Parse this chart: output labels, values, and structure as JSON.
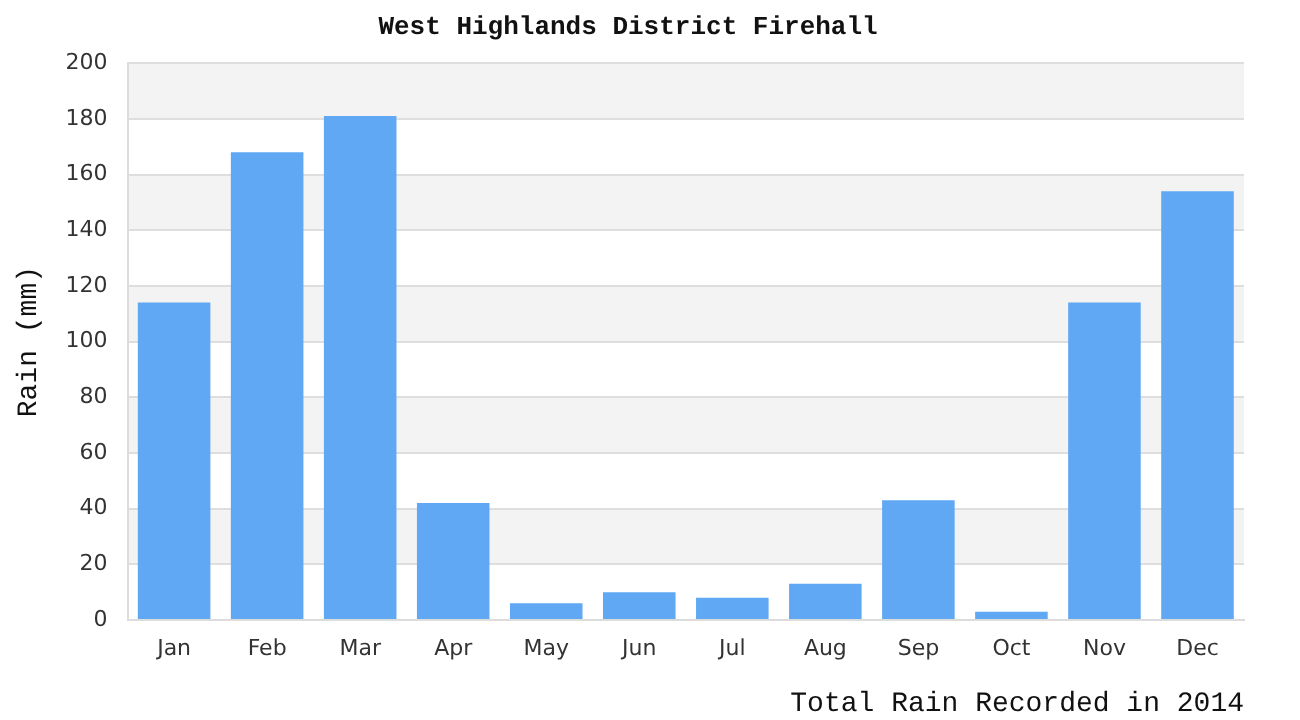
{
  "chart_data": {
    "type": "bar",
    "title": "West Highlands District Firehall",
    "xlabel": "Total Rain Recorded in 2014",
    "ylabel": "Rain (mm)",
    "categories": [
      "Jan",
      "Feb",
      "Mar",
      "Apr",
      "May",
      "Jun",
      "Jul",
      "Aug",
      "Sep",
      "Oct",
      "Nov",
      "Dec"
    ],
    "values": [
      114,
      168,
      181,
      42,
      6,
      10,
      8,
      13,
      43,
      3,
      114,
      154
    ],
    "color": "#60a8f4",
    "ylim": [
      0,
      200
    ],
    "yticks": [
      0,
      20,
      40,
      60,
      80,
      100,
      120,
      140,
      160,
      180,
      200
    ],
    "grid": "y",
    "legend": false
  }
}
